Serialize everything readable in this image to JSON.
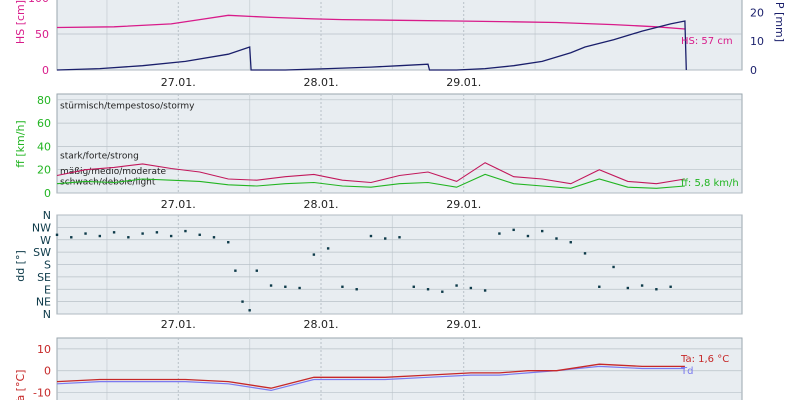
{
  "page": {
    "title": ""
  },
  "dates": [
    "27.01.",
    "28.01.",
    "29.01."
  ],
  "colors": {
    "hs": "#d81b8a",
    "p": "#1a1f6b",
    "ff": "#22b522",
    "gust": "#c2185b",
    "dd": "#0e3b4a",
    "ta": "#c62828",
    "td": "#7a7af0",
    "panel_bg": "#e8edf1",
    "grid": "#b8c1c8"
  },
  "chart_data": [
    {
      "type": "line",
      "panel": "snow-precip",
      "xlabel": "",
      "ylabel_left": "HS [cm]",
      "ylabel_right": "P [mm]",
      "y_left_ticks": [
        "0",
        "50",
        "100"
      ],
      "y_right_ticks": [
        "0",
        "10",
        "20"
      ],
      "ylim_left": [
        0,
        100
      ],
      "ylim_right": [
        0,
        25
      ],
      "x_ticks": [
        "27.01.",
        "28.01.",
        "29.01."
      ],
      "series": [
        {
          "name": "HS",
          "label": "HS: 57 cm",
          "axis": "left",
          "x": [
            0.0,
            0.4,
            0.8,
            1.0,
            1.2,
            1.5,
            1.8,
            2.0,
            2.4,
            2.8,
            3.2,
            3.5,
            3.9,
            4.2,
            4.4
          ],
          "y": [
            59,
            60,
            64,
            70,
            76,
            73,
            71,
            70,
            69,
            68,
            67,
            66,
            63,
            60,
            57
          ]
        },
        {
          "name": "P",
          "axis": "right",
          "x": [
            0.0,
            0.3,
            0.6,
            0.9,
            1.2,
            1.35,
            1.36,
            1.6,
            1.9,
            2.2,
            2.4,
            2.6,
            2.61,
            2.8,
            3.0,
            3.2,
            3.4,
            3.6,
            3.7,
            3.9,
            4.1,
            4.3,
            4.4,
            4.41
          ],
          "y": [
            0.0,
            0.5,
            1.5,
            3.0,
            5.5,
            8.0,
            0.0,
            0.0,
            0.5,
            1.0,
            1.5,
            2.0,
            0.0,
            0.0,
            0.5,
            1.5,
            3.0,
            6.0,
            8.0,
            10.5,
            13.5,
            16.0,
            17.0,
            0.0
          ]
        }
      ]
    },
    {
      "type": "line",
      "panel": "wind-speed",
      "xlabel": "",
      "ylabel": "ff [km/h]",
      "y_ticks": [
        "0",
        "20",
        "40",
        "60",
        "80"
      ],
      "ylim": [
        0,
        85
      ],
      "x_ticks": [
        "27.01.",
        "28.01.",
        "29.01."
      ],
      "categories_text": [
        {
          "label": "stürmisch/tempestoso/stormy",
          "y": 75
        },
        {
          "label": "stark/forte/strong",
          "y": 32
        },
        {
          "label": "mäßig/medio/moderate",
          "y": 19
        },
        {
          "label": "schwach/debole/light",
          "y": 10
        }
      ],
      "series": [
        {
          "name": "ff",
          "label": "ff: 5,8 km/h",
          "x": [
            0.0,
            0.2,
            0.4,
            0.6,
            0.8,
            1.0,
            1.2,
            1.4,
            1.6,
            1.8,
            2.0,
            2.2,
            2.4,
            2.6,
            2.8,
            3.0,
            3.2,
            3.4,
            3.6,
            3.8,
            4.0,
            4.2,
            4.4
          ],
          "y": [
            8,
            10,
            9,
            12,
            11,
            10,
            7,
            6,
            8,
            9,
            6,
            5,
            8,
            9,
            5,
            16,
            8,
            6,
            4,
            12,
            5,
            4,
            6
          ]
        },
        {
          "name": "gust",
          "x": [
            0.0,
            0.2,
            0.4,
            0.6,
            0.8,
            1.0,
            1.2,
            1.4,
            1.6,
            1.8,
            2.0,
            2.2,
            2.4,
            2.6,
            2.8,
            3.0,
            3.2,
            3.4,
            3.6,
            3.8,
            4.0,
            4.2,
            4.4
          ],
          "y": [
            15,
            20,
            22,
            25,
            21,
            18,
            12,
            11,
            14,
            16,
            11,
            9,
            15,
            18,
            10,
            26,
            14,
            12,
            8,
            20,
            10,
            8,
            12
          ]
        }
      ]
    },
    {
      "type": "scatter",
      "panel": "wind-direction",
      "xlabel": "",
      "ylabel": "dd [°]",
      "y_ticks": [
        "N",
        "NW",
        "W",
        "SW",
        "S",
        "SE",
        "E",
        "NE",
        "N"
      ],
      "ylim": [
        0,
        8
      ],
      "x_ticks": [
        "27.01.",
        "28.01.",
        "29.01."
      ],
      "series": [
        {
          "name": "dd",
          "x": [
            0.0,
            0.1,
            0.2,
            0.3,
            0.4,
            0.5,
            0.6,
            0.7,
            0.8,
            0.9,
            1.0,
            1.1,
            1.2,
            1.25,
            1.3,
            1.35,
            1.4,
            1.5,
            1.6,
            1.7,
            1.8,
            1.9,
            2.0,
            2.1,
            2.2,
            2.3,
            2.4,
            2.5,
            2.6,
            2.7,
            2.8,
            2.9,
            3.0,
            3.1,
            3.2,
            3.3,
            3.4,
            3.5,
            3.6,
            3.7,
            3.8,
            3.9,
            4.0,
            4.1,
            4.2,
            4.3
          ],
          "y": [
            6.4,
            6.2,
            6.5,
            6.3,
            6.6,
            6.2,
            6.5,
            6.6,
            6.3,
            6.7,
            6.4,
            6.2,
            5.8,
            3.5,
            1.0,
            0.3,
            3.5,
            2.3,
            2.2,
            2.1,
            4.8,
            5.3,
            2.2,
            2.0,
            6.3,
            6.1,
            6.2,
            2.2,
            2.0,
            1.8,
            2.3,
            2.1,
            1.9,
            6.5,
            6.8,
            6.3,
            6.7,
            6.1,
            5.8,
            4.9,
            2.2,
            3.8,
            2.1,
            2.3,
            2.0,
            2.2
          ]
        }
      ]
    },
    {
      "type": "line",
      "panel": "temperature",
      "xlabel": "",
      "ylabel": "Ta [°C]",
      "y_ticks": [
        "10",
        "0",
        "-10"
      ],
      "ylim": [
        -18,
        15
      ],
      "series": [
        {
          "name": "Ta",
          "label": "Ta: 1,6 °C",
          "x": [
            0.0,
            0.3,
            0.6,
            0.9,
            1.2,
            1.5,
            1.8,
            2.0,
            2.3,
            2.6,
            2.9,
            3.1,
            3.3,
            3.5,
            3.8,
            4.1,
            4.4
          ],
          "y": [
            -5,
            -4,
            -4,
            -4,
            -5,
            -8,
            -3,
            -3,
            -3,
            -2,
            -1,
            -1,
            0,
            0,
            3,
            2,
            2
          ]
        },
        {
          "name": "Td",
          "label": "Td",
          "x": [
            0.0,
            0.3,
            0.6,
            0.9,
            1.2,
            1.5,
            1.8,
            2.0,
            2.3,
            2.6,
            2.9,
            3.1,
            3.3,
            3.5,
            3.8,
            4.1,
            4.4
          ],
          "y": [
            -6,
            -5,
            -5,
            -5,
            -6,
            -9,
            -4,
            -4,
            -4,
            -3,
            -2,
            -2,
            -1,
            0,
            2,
            1,
            1
          ]
        }
      ]
    }
  ]
}
